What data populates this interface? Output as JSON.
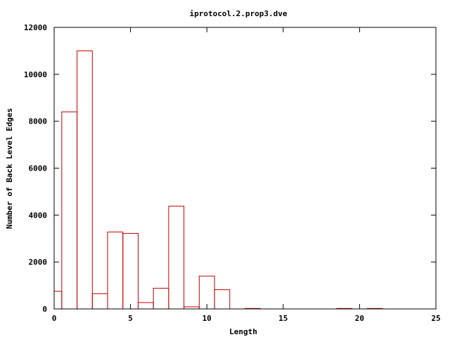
{
  "chart_data": {
    "type": "bar",
    "title": "iprotocol.2.prop3.dve",
    "xlabel": "Length",
    "ylabel": "Number of Back Level Edges",
    "xlim": [
      0,
      25
    ],
    "ylim": [
      0,
      12000
    ],
    "xticks": [
      "0",
      "5",
      "10",
      "15",
      "20",
      "25"
    ],
    "yticks": [
      "0",
      "2000",
      "4000",
      "6000",
      "8000",
      "10000",
      "12000"
    ],
    "bar_color": "#c00000",
    "grid": false,
    "legend": "none",
    "bars": [
      {
        "x": 0,
        "value": 750
      },
      {
        "x": 1,
        "value": 8400
      },
      {
        "x": 2,
        "value": 11000
      },
      {
        "x": 3,
        "value": 650
      },
      {
        "x": 4,
        "value": 3280
      },
      {
        "x": 5,
        "value": 3220
      },
      {
        "x": 6,
        "value": 270
      },
      {
        "x": 7,
        "value": 880
      },
      {
        "x": 8,
        "value": 4380
      },
      {
        "x": 9,
        "value": 90
      },
      {
        "x": 10,
        "value": 1400
      },
      {
        "x": 11,
        "value": 820
      },
      {
        "x": 13,
        "value": 20
      },
      {
        "x": 19,
        "value": 20
      },
      {
        "x": 21,
        "value": 20
      }
    ]
  }
}
